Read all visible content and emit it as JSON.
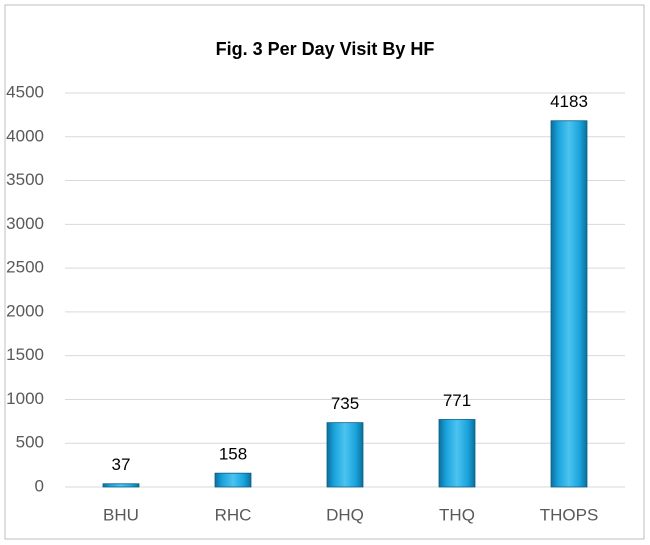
{
  "chart_data": {
    "type": "bar",
    "title": "Fig. 3 Per Day Visit By HF",
    "categories": [
      "BHU",
      "RHC",
      "DHQ",
      "THQ",
      "THOPS"
    ],
    "values": [
      37,
      158,
      735,
      771,
      4183
    ],
    "color": "#1aa3dc",
    "ylim": [
      0,
      4500
    ],
    "yticks": [
      0,
      500,
      1000,
      1500,
      2000,
      2500,
      3000,
      3500,
      4000,
      4500
    ],
    "grid": true
  }
}
